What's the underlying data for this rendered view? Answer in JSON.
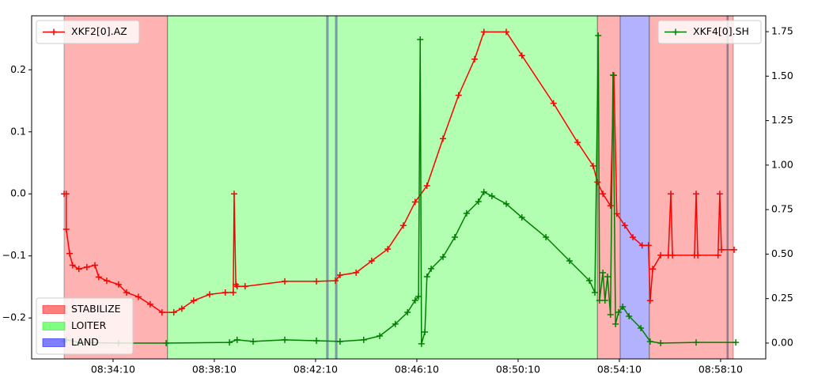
{
  "chart_data": {
    "type": "line",
    "xlim": [
      30657,
      32397
    ],
    "xticks": [
      {
        "value": 30850,
        "label": "08:34:10"
      },
      {
        "value": 31090,
        "label": "08:38:10"
      },
      {
        "value": 31330,
        "label": "08:42:10"
      },
      {
        "value": 31570,
        "label": "08:46:10"
      },
      {
        "value": 31810,
        "label": "08:50:10"
      },
      {
        "value": 32050,
        "label": "08:54:10"
      },
      {
        "value": 32290,
        "label": "08:58:10"
      }
    ],
    "ylim": [
      -0.266,
      0.287
    ],
    "yticks": [
      {
        "value": -0.2,
        "label": "−0.2"
      },
      {
        "value": -0.1,
        "label": "−0.1"
      },
      {
        "value": 0,
        "label": "0.0"
      },
      0.1,
      0.2
    ],
    "y2lim": [
      -0.089,
      1.839
    ],
    "y2ticks": [
      {
        "value": 0,
        "label": "0.00"
      },
      0.25,
      {
        "value": 0.5,
        "label": "0.50"
      },
      0.75,
      {
        "value": 1,
        "label": "1.00"
      },
      1.25,
      {
        "value": 1.5,
        "label": "1.50"
      },
      1.75
    ],
    "modes": [
      {
        "name": "STABILIZE",
        "color": "#ff0000"
      },
      {
        "name": "LOITER",
        "color": "#00ff00"
      },
      {
        "name": "LAND",
        "color": "#0000ff"
      }
    ],
    "modes_legend_loc": "lower left",
    "regions": [
      {
        "mode": "STABILIZE",
        "start": 30734,
        "end": 30979
      },
      {
        "mode": "LOITER",
        "start": 30979,
        "end": 31998
      },
      {
        "mode": "LAND",
        "start": 31356,
        "end": 31360
      },
      {
        "mode": "LAND",
        "start": 31377,
        "end": 31381
      },
      {
        "mode": "STABILIZE",
        "start": 31998,
        "end": 32052
      },
      {
        "mode": "LAND",
        "start": 32052,
        "end": 32121
      },
      {
        "mode": "STABILIZE",
        "start": 32121,
        "end": 32320
      },
      {
        "mode": "LAND",
        "start": 32305,
        "end": 32308
      }
    ],
    "series": [
      {
        "name": "XKF2[0].AZ",
        "color": "#ff0000",
        "axis": "y",
        "legend_loc": "upper left",
        "x": [
          30734,
          30739,
          30739,
          30747,
          30754,
          30769,
          30788,
          30807,
          30816,
          30835,
          30863,
          30882,
          30910,
          30938,
          30966,
          30994,
          31013,
          31041,
          31079,
          31116,
          31135,
          31137,
          31141,
          31144,
          31163,
          31257,
          31332,
          31377,
          31388,
          31426,
          31463,
          31501,
          31538,
          31566,
          31594,
          31632,
          31669,
          31707,
          31729,
          31782,
          31819,
          31894,
          31951,
          31988,
          31998,
          32011,
          32029,
          32037,
          32044,
          32063,
          32082,
          32104,
          32119,
          32123,
          32129,
          32148,
          32166,
          32172,
          32176,
          32228,
          32232,
          32236,
          32284,
          32288,
          32292,
          32322
        ],
        "values": [
          0,
          0,
          -0.057,
          -0.096,
          -0.115,
          -0.121,
          -0.118,
          -0.115,
          -0.134,
          -0.14,
          -0.146,
          -0.159,
          -0.166,
          -0.178,
          -0.191,
          -0.191,
          -0.185,
          -0.172,
          -0.162,
          -0.159,
          -0.159,
          0,
          -0.146,
          -0.149,
          -0.149,
          -0.141,
          -0.141,
          -0.14,
          -0.131,
          -0.127,
          -0.108,
          -0.089,
          -0.051,
          -0.013,
          0.013,
          0.089,
          0.159,
          0.217,
          0.261,
          0.261,
          0.223,
          0.146,
          0.083,
          0.045,
          0.019,
          0,
          -0.019,
          0.191,
          -0.032,
          -0.051,
          -0.07,
          -0.083,
          -0.083,
          -0.172,
          -0.121,
          -0.099,
          -0.099,
          0,
          -0.099,
          -0.099,
          0,
          -0.099,
          -0.099,
          0,
          -0.09,
          -0.09
        ]
      },
      {
        "name": "XKF4[0].SH",
        "color": "#008000",
        "axis": "y2",
        "legend_loc": "upper right",
        "x": [
          30734,
          30739,
          30769,
          30863,
          30976,
          31126,
          31144,
          31182,
          31257,
          31332,
          31388,
          31444,
          31482,
          31519,
          31548,
          31566,
          31574,
          31578,
          31581,
          31589,
          31594,
          31604,
          31632,
          31660,
          31688,
          31716,
          31729,
          31748,
          31782,
          31819,
          31876,
          31932,
          31979,
          31992,
          32000,
          32003,
          32011,
          32016,
          32022,
          32029,
          32035,
          32041,
          32048,
          32058,
          32073,
          32101,
          32123,
          32148,
          32232,
          32326
        ],
        "values": [
          0.009,
          0.018,
          0.004,
          0,
          0,
          0.004,
          0.018,
          0.009,
          0.018,
          0.013,
          0.009,
          0.018,
          0.04,
          0.107,
          0.173,
          0.24,
          0.262,
          1.706,
          -0.004,
          0.062,
          0.373,
          0.418,
          0.484,
          0.595,
          0.729,
          0.795,
          0.849,
          0.826,
          0.782,
          0.706,
          0.595,
          0.462,
          0.351,
          0.284,
          1.728,
          0.24,
          0.395,
          0.24,
          0.373,
          0.16,
          1.506,
          0.107,
          0.173,
          0.204,
          0.151,
          0.084,
          0.009,
          0,
          0.004,
          0.004
        ]
      }
    ]
  }
}
